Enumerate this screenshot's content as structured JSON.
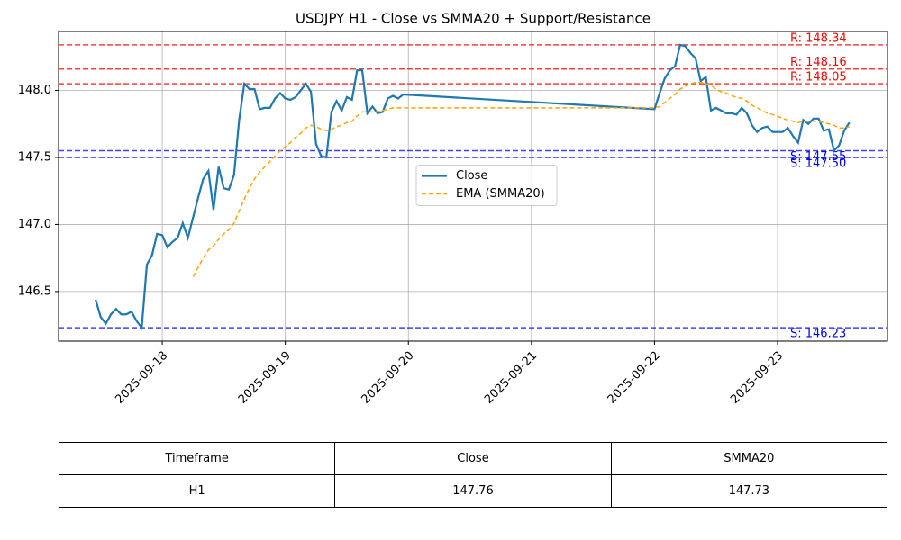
{
  "chart_data": {
    "type": "line",
    "title": "USDJPY H1 - Close vs SMMA20 + Support/Resistance",
    "x": [
      "2025-09-17T11:00",
      "2025-09-17T12:00",
      "2025-09-17T13:00",
      "2025-09-17T14:00",
      "2025-09-17T15:00",
      "2025-09-17T16:00",
      "2025-09-17T17:00",
      "2025-09-17T18:00",
      "2025-09-17T19:00",
      "2025-09-17T20:00",
      "2025-09-17T21:00",
      "2025-09-17T22:00",
      "2025-09-17T23:00",
      "2025-09-18T00:00",
      "2025-09-18T01:00",
      "2025-09-18T02:00",
      "2025-09-18T03:00",
      "2025-09-18T04:00",
      "2025-09-18T05:00",
      "2025-09-18T06:00",
      "2025-09-18T07:00",
      "2025-09-18T08:00",
      "2025-09-18T09:00",
      "2025-09-18T10:00",
      "2025-09-18T11:00",
      "2025-09-18T12:00",
      "2025-09-18T13:00",
      "2025-09-18T14:00",
      "2025-09-18T15:00",
      "2025-09-18T16:00",
      "2025-09-18T17:00",
      "2025-09-18T18:00",
      "2025-09-18T19:00",
      "2025-09-18T20:00",
      "2025-09-18T21:00",
      "2025-09-18T22:00",
      "2025-09-18T23:00",
      "2025-09-19T00:00",
      "2025-09-19T01:00",
      "2025-09-19T02:00",
      "2025-09-19T03:00",
      "2025-09-19T04:00",
      "2025-09-19T05:00",
      "2025-09-19T06:00",
      "2025-09-19T07:00",
      "2025-09-19T08:00",
      "2025-09-19T09:00",
      "2025-09-19T10:00",
      "2025-09-19T11:00",
      "2025-09-19T12:00",
      "2025-09-19T13:00",
      "2025-09-19T14:00",
      "2025-09-19T15:00",
      "2025-09-19T16:00",
      "2025-09-19T17:00",
      "2025-09-19T18:00",
      "2025-09-19T19:00",
      "2025-09-19T20:00",
      "2025-09-19T21:00",
      "2025-09-19T22:00",
      "2025-09-19T23:00",
      "2025-09-22T00:00",
      "2025-09-22T01:00",
      "2025-09-22T02:00",
      "2025-09-22T03:00",
      "2025-09-22T04:00",
      "2025-09-22T05:00",
      "2025-09-22T06:00",
      "2025-09-22T07:00",
      "2025-09-22T08:00",
      "2025-09-22T09:00",
      "2025-09-22T10:00",
      "2025-09-22T11:00",
      "2025-09-22T12:00",
      "2025-09-22T13:00",
      "2025-09-22T14:00",
      "2025-09-22T15:00",
      "2025-09-22T16:00",
      "2025-09-22T17:00",
      "2025-09-22T18:00",
      "2025-09-22T19:00",
      "2025-09-22T20:00",
      "2025-09-22T21:00",
      "2025-09-22T22:00",
      "2025-09-22T23:00",
      "2025-09-23T00:00",
      "2025-09-23T01:00",
      "2025-09-23T02:00",
      "2025-09-23T03:00",
      "2025-09-23T04:00",
      "2025-09-23T05:00",
      "2025-09-23T06:00",
      "2025-09-23T07:00",
      "2025-09-23T08:00",
      "2025-09-23T09:00",
      "2025-09-23T10:00",
      "2025-09-23T11:00",
      "2025-09-23T12:00",
      "2025-09-23T13:00",
      "2025-09-23T14:00"
    ],
    "series": [
      {
        "name": "Close",
        "color": "#1f77b4",
        "dash": false,
        "values": [
          146.44,
          146.31,
          146.26,
          146.33,
          146.37,
          146.33,
          146.33,
          146.35,
          146.28,
          146.23,
          146.7,
          146.77,
          146.93,
          146.92,
          146.83,
          146.87,
          146.9,
          147.01,
          146.9,
          147.05,
          147.2,
          147.34,
          147.4,
          147.11,
          147.43,
          147.27,
          147.26,
          147.37,
          147.78,
          148.05,
          148.01,
          148.01,
          147.86,
          147.87,
          147.87,
          147.94,
          147.98,
          147.94,
          147.93,
          147.95,
          148.0,
          148.05,
          147.99,
          147.6,
          147.51,
          147.5,
          147.84,
          147.92,
          147.85,
          147.95,
          147.93,
          148.15,
          148.15,
          147.83,
          147.88,
          147.83,
          147.84,
          147.94,
          147.96,
          147.94,
          147.97,
          147.86,
          147.98,
          148.09,
          148.15,
          148.18,
          148.34,
          148.33,
          148.28,
          148.24,
          148.07,
          148.1,
          147.85,
          147.87,
          147.85,
          147.83,
          147.83,
          147.82,
          147.87,
          147.83,
          147.74,
          147.69,
          147.72,
          147.73,
          147.69,
          147.69,
          147.69,
          147.72,
          147.66,
          147.61,
          147.78,
          147.75,
          147.79,
          147.79,
          147.7,
          147.71,
          147.55,
          147.59,
          147.7,
          147.76
        ]
      },
      {
        "name": "EMA (SMMA20)",
        "color": "#ffa500",
        "dash": true,
        "values": [
          null,
          null,
          null,
          null,
          null,
          null,
          null,
          null,
          null,
          null,
          null,
          null,
          null,
          null,
          null,
          null,
          null,
          null,
          null,
          146.61,
          146.68,
          146.75,
          146.81,
          146.84,
          146.89,
          146.93,
          146.96,
          147.01,
          147.1,
          147.19,
          147.27,
          147.34,
          147.39,
          147.43,
          147.47,
          147.51,
          147.55,
          147.58,
          147.61,
          147.65,
          147.68,
          147.72,
          147.74,
          147.73,
          147.71,
          147.7,
          147.71,
          147.73,
          147.74,
          147.76,
          147.77,
          147.81,
          147.84,
          147.84,
          147.84,
          147.84,
          147.85,
          147.86,
          147.87,
          147.87,
          147.87,
          147.87,
          147.88,
          147.91,
          147.94,
          147.97,
          148.01,
          148.03,
          148.05,
          148.06,
          148.06,
          148.05,
          148.04,
          148.01,
          147.99,
          147.98,
          147.96,
          147.95,
          147.94,
          147.92,
          147.89,
          147.87,
          147.85,
          147.83,
          147.82,
          147.81,
          147.79,
          147.78,
          147.77,
          147.76,
          147.77,
          147.77,
          147.77,
          147.77,
          147.76,
          147.75,
          147.74,
          147.72,
          147.72,
          147.73
        ]
      }
    ],
    "levels": [
      {
        "label": "R: 148.34",
        "value": 148.34,
        "color": "#ff0000",
        "kind": "resistance"
      },
      {
        "label": "R: 148.16",
        "value": 148.16,
        "color": "#ff0000",
        "kind": "resistance"
      },
      {
        "label": "R: 148.05",
        "value": 148.05,
        "color": "#ff0000",
        "kind": "resistance"
      },
      {
        "label": "S: 147.55",
        "value": 147.55,
        "color": "#0000ff",
        "kind": "support"
      },
      {
        "label": "S: 147.50",
        "value": 147.5,
        "color": "#0000ff",
        "kind": "support"
      },
      {
        "label": "S: 146.23",
        "value": 146.23,
        "color": "#0000ff",
        "kind": "support"
      }
    ],
    "xlim": [
      "2025-09-17T03:47",
      "2025-09-23T21:26"
    ],
    "xticks": [
      {
        "value": "2025-09-18T00:00",
        "label": "2025-09-18"
      },
      {
        "value": "2025-09-19T00:00",
        "label": "2025-09-19"
      },
      {
        "value": "2025-09-20T00:00",
        "label": "2025-09-20"
      },
      {
        "value": "2025-09-21T00:00",
        "label": "2025-09-21"
      },
      {
        "value": "2025-09-22T00:00",
        "label": "2025-09-22"
      },
      {
        "value": "2025-09-23T00:00",
        "label": "2025-09-23"
      }
    ],
    "ylim": [
      146.13,
      148.44
    ],
    "yticks": [
      {
        "value": 146.5,
        "label": "146.5"
      },
      {
        "value": 147.0,
        "label": "147.0"
      },
      {
        "value": 147.5,
        "label": "147.5"
      },
      {
        "value": 148.0,
        "label": "148.0"
      }
    ],
    "grid": true,
    "legend": "center"
  },
  "table": {
    "columns": [
      "Timeframe",
      "Close",
      "SMMA20"
    ],
    "rows": [
      [
        "H1",
        "147.76",
        "147.73"
      ]
    ]
  }
}
